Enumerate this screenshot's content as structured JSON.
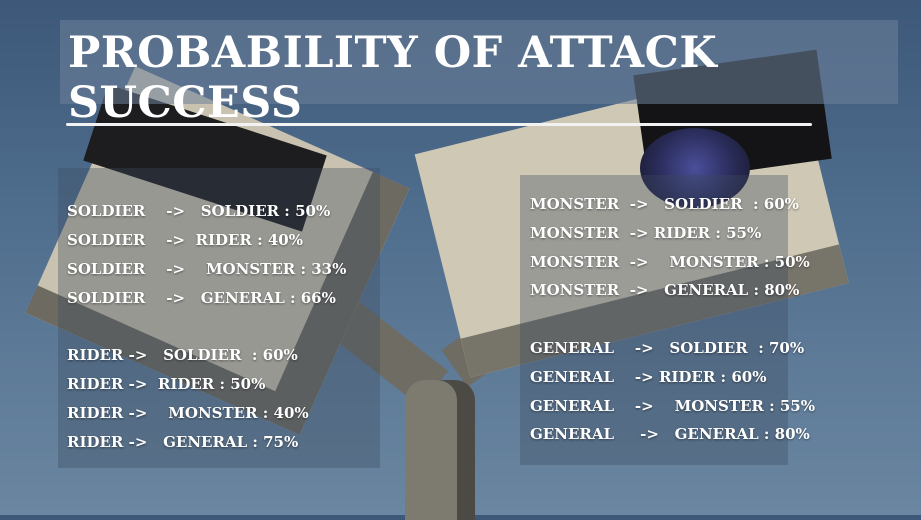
{
  "title": "PROBABILITY OF ATTACK SUCCESS",
  "left_column": {
    "soldier": [
      "SOLDIER    ->   SOLDIER : 50%",
      "SOLDIER    ->  RIDER : 40%",
      "SOLDIER    ->    MONSTER : 33%",
      "SOLDIER    ->   GENERAL : 66%"
    ],
    "rider": [
      "RIDER ->   SOLDIER  : 60%",
      "RIDER ->  RIDER : 50%",
      "RIDER ->    MONSTER : 40%",
      "RIDER ->   GENERAL : 75%"
    ]
  },
  "right_column": {
    "monster": [
      "MONSTER  ->   SOLDIER  : 60%",
      "MONSTER  -> RIDER : 55%",
      "MONSTER  ->    MONSTER : 50%",
      "MONSTER  ->   GENERAL : 80%"
    ],
    "general": [
      "GENERAL    ->   SOLDIER  : 70%",
      "GENERAL    -> RIDER : 60%",
      "GENERAL    ->    MONSTER : 55%",
      "GENERAL     ->   GENERAL : 80%"
    ]
  },
  "colors": {
    "text": "#ffffff",
    "divider": "#f2f2f2",
    "sky": "#4c6a8a"
  }
}
